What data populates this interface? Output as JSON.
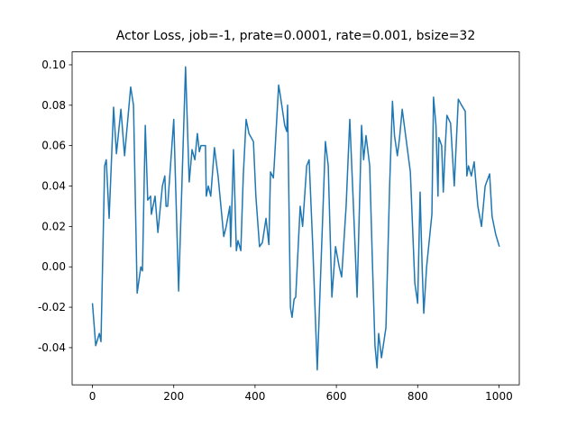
{
  "chart_data": {
    "type": "line",
    "title": "Actor Loss, job=-1, prate=0.0001, rate=0.001, bsize=32",
    "x": [
      0,
      8,
      17,
      21,
      30,
      34,
      41,
      52,
      59,
      70,
      79,
      94,
      101,
      110,
      119,
      123,
      130,
      136,
      143,
      145,
      154,
      161,
      172,
      178,
      181,
      185,
      200,
      212,
      229,
      238,
      245,
      252,
      258,
      263,
      267,
      278,
      280,
      285,
      291,
      300,
      309,
      323,
      329,
      338,
      340,
      347,
      354,
      358,
      365,
      371,
      378,
      385,
      396,
      402,
      411,
      418,
      427,
      434,
      438,
      445,
      447,
      458,
      462,
      473,
      478,
      480,
      487,
      491,
      496,
      500,
      511,
      517,
      527,
      533,
      542,
      553,
      562,
      573,
      580,
      589,
      598,
      607,
      613,
      624,
      633,
      642,
      651,
      662,
      667,
      673,
      682,
      689,
      695,
      700,
      704,
      711,
      722,
      731,
      738,
      743,
      750,
      755,
      762,
      771,
      782,
      788,
      793,
      800,
      806,
      811,
      815,
      822,
      835,
      839,
      845,
      850,
      852,
      859,
      863,
      868,
      872,
      881,
      890,
      900,
      908,
      917,
      921,
      925,
      932,
      939,
      948,
      957,
      966,
      977,
      983,
      992,
      1001
    ],
    "series": [
      {
        "color": "#1f77b4",
        "values": [
          -0.018,
          -0.039,
          -0.033,
          -0.037,
          0.05,
          0.053,
          0.024,
          0.079,
          0.056,
          0.078,
          0.055,
          0.089,
          0.08,
          -0.013,
          0.0,
          -0.002,
          0.07,
          0.033,
          0.035,
          0.026,
          0.035,
          0.017,
          0.04,
          0.045,
          0.03,
          0.03,
          0.073,
          -0.012,
          0.099,
          0.042,
          0.058,
          0.053,
          0.066,
          0.057,
          0.06,
          0.06,
          0.035,
          0.04,
          0.035,
          0.059,
          0.045,
          0.015,
          0.02,
          0.03,
          0.01,
          0.058,
          0.008,
          0.013,
          0.008,
          0.045,
          0.073,
          0.066,
          0.062,
          0.035,
          0.01,
          0.012,
          0.024,
          0.011,
          0.047,
          0.044,
          0.05,
          0.09,
          0.085,
          0.07,
          0.067,
          0.08,
          -0.02,
          -0.025,
          -0.016,
          -0.015,
          0.03,
          0.02,
          0.05,
          0.053,
          0.01,
          -0.051,
          0.0,
          0.062,
          0.05,
          -0.015,
          0.01,
          0.0,
          -0.005,
          0.03,
          0.073,
          0.03,
          -0.015,
          0.07,
          0.053,
          0.065,
          0.05,
          0.0,
          -0.039,
          -0.05,
          -0.033,
          -0.045,
          -0.03,
          0.04,
          0.082,
          0.065,
          0.055,
          0.063,
          0.078,
          0.064,
          0.047,
          0.017,
          -0.008,
          -0.018,
          0.037,
          0.0,
          -0.023,
          0.0,
          0.026,
          0.084,
          0.07,
          0.035,
          0.064,
          0.06,
          0.037,
          0.06,
          0.075,
          0.071,
          0.04,
          0.083,
          0.08,
          0.077,
          0.045,
          0.05,
          0.045,
          0.052,
          0.03,
          0.02,
          0.04,
          0.046,
          0.025,
          0.016,
          0.01
        ]
      }
    ],
    "xlim": [
      -50,
      1050
    ],
    "xticks": [
      0,
      200,
      400,
      600,
      800,
      1000
    ],
    "ylim": [
      -0.0584,
      0.1064
    ],
    "yticks": [
      {
        "value": -0.04,
        "label": "-0.04"
      },
      {
        "value": -0.02,
        "label": "-0.02"
      },
      {
        "value": 0,
        "label": "0.00"
      },
      {
        "value": 0.02,
        "label": "0.02"
      },
      {
        "value": 0.04,
        "label": "0.04"
      },
      {
        "value": 0.06,
        "label": "0.06"
      },
      {
        "value": 0.08,
        "label": "0.08"
      },
      {
        "value": 0.1,
        "label": "0.10"
      }
    ],
    "grid": false
  }
}
